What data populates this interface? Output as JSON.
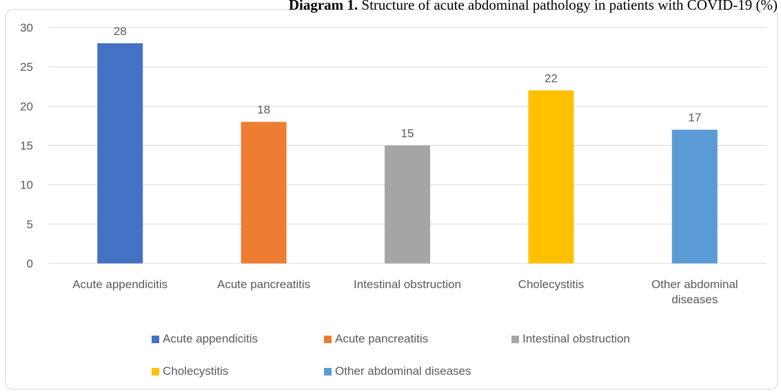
{
  "chart_data": {
    "type": "bar",
    "title_label": "Diagram 1.",
    "title": "Structure of acute abdominal pathology in patients with COVID-19 (%)",
    "categories": [
      "Acute appendicitis",
      "Acute pancreatitis",
      "Intestinal obstruction",
      "Cholecystitis",
      "Other abdominal diseases"
    ],
    "values": [
      28,
      18,
      15,
      22,
      17
    ],
    "colors": [
      "#4472c4",
      "#ed7d31",
      "#a5a5a5",
      "#ffc000",
      "#5b9bd5"
    ],
    "ylim": [
      0,
      30
    ],
    "yticks": [
      0,
      5,
      10,
      15,
      20,
      25,
      30
    ],
    "grid": true,
    "legend": "bottom"
  }
}
